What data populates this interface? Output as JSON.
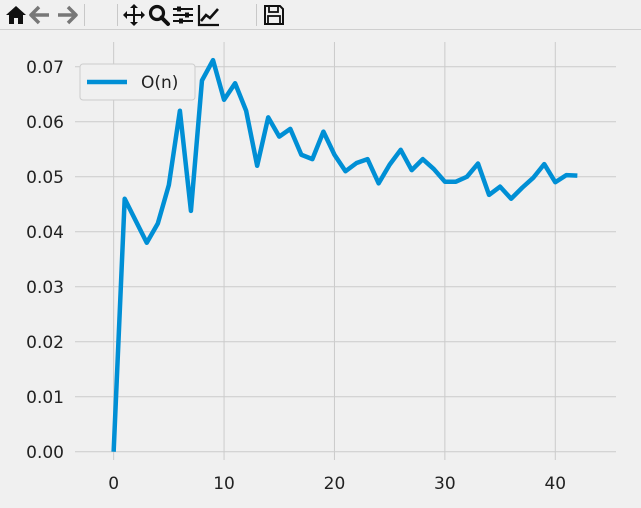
{
  "toolbar": {
    "buttons": [
      {
        "name": "home-icon"
      },
      {
        "name": "back-arrow-icon"
      },
      {
        "name": "forward-arrow-icon"
      },
      {
        "name": "pan-icon"
      },
      {
        "name": "zoom-icon"
      },
      {
        "name": "configure-subplots-icon"
      },
      {
        "name": "edit-axis-icon"
      },
      {
        "name": "save-icon"
      }
    ]
  },
  "chart_data": {
    "type": "line",
    "title": "",
    "xlabel": "",
    "ylabel": "",
    "xlim": [
      -3.5,
      45.5
    ],
    "ylim": [
      -0.0015,
      0.0745
    ],
    "xticks": [
      0,
      10,
      20,
      30,
      40
    ],
    "yticks": [
      0.0,
      0.01,
      0.02,
      0.03,
      0.04,
      0.05,
      0.06,
      0.07
    ],
    "xtick_labels": [
      "0",
      "10",
      "20",
      "30",
      "40"
    ],
    "ytick_labels": [
      "0.00",
      "0.01",
      "0.02",
      "0.03",
      "0.04",
      "0.05",
      "0.06",
      "0.07"
    ],
    "grid": true,
    "legend": {
      "placement": "top-left"
    },
    "series": [
      {
        "name": "O(n)",
        "color": "#008fd5",
        "x": [
          0,
          1,
          2,
          3,
          4,
          5,
          6,
          7,
          8,
          9,
          10,
          11,
          12,
          13,
          14,
          15,
          16,
          17,
          18,
          19,
          20,
          21,
          22,
          23,
          24,
          25,
          26,
          27,
          28,
          29,
          30,
          31,
          32,
          33,
          34,
          35,
          36,
          37,
          38,
          39,
          40,
          41,
          42
        ],
        "values": [
          0.0,
          0.046,
          0.042,
          0.038,
          0.0415,
          0.0485,
          0.062,
          0.0438,
          0.0675,
          0.0712,
          0.064,
          0.067,
          0.062,
          0.052,
          0.0608,
          0.0573,
          0.0587,
          0.054,
          0.0532,
          0.0582,
          0.054,
          0.051,
          0.0525,
          0.0532,
          0.0488,
          0.0522,
          0.0549,
          0.0512,
          0.0532,
          0.0514,
          0.0491,
          0.0491,
          0.05,
          0.0524,
          0.0467,
          0.0482,
          0.046,
          0.048,
          0.0498,
          0.0523,
          0.049,
          0.0503,
          0.0502
        ]
      }
    ]
  }
}
